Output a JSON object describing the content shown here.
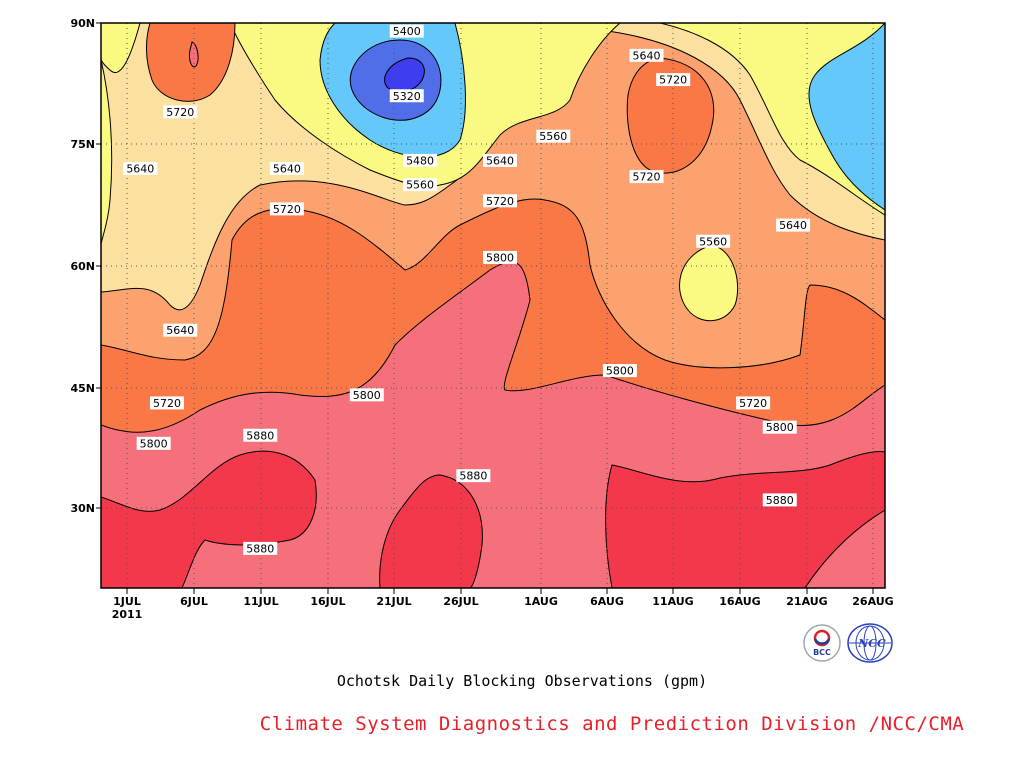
{
  "chart_data": {
    "type": "heatmap",
    "title": "Ochotsk Daily Blocking Observations (gpm)",
    "x_ticks": [
      "1JUL",
      "6JUL",
      "11JUL",
      "16JUL",
      "21JUL",
      "26JUL",
      "1AUG",
      "6AUG",
      "11AUG",
      "16AUG",
      "21AUG",
      "26AUG"
    ],
    "x_year": "2011",
    "y_ticks": [
      "30N",
      "45N",
      "60N",
      "75N",
      "90N"
    ],
    "y_range": [
      "20N",
      "90N"
    ],
    "contour_levels": [
      5320,
      5400,
      5480,
      5560,
      5640,
      5720,
      5800,
      5880
    ],
    "band_colors": {
      "lt5320": "#3e3ef0",
      "5320_5400": "#4f6ee8",
      "5400_5480": "#64c8fa",
      "5480_5560": "#fafa82",
      "5560_5640": "#fce0a0",
      "5640_5720": "#fca26e",
      "5720_5800": "#fa7846",
      "5800_5880": "#f5707a",
      "gt5880": "#f2384a"
    },
    "contour_labels": [
      {
        "text": "5400",
        "date": "22JUL",
        "lat": "89N"
      },
      {
        "text": "5320",
        "date": "22JUL",
        "lat": "81N"
      },
      {
        "text": "5480",
        "date": "23JUL",
        "lat": "73N"
      },
      {
        "text": "5560",
        "date": "23JUL",
        "lat": "70N"
      },
      {
        "text": "5640",
        "date": "29JUL",
        "lat": "73N"
      },
      {
        "text": "5560",
        "date": "2AUG",
        "lat": "76N"
      },
      {
        "text": "5720",
        "date": "29JUL",
        "lat": "68N"
      },
      {
        "text": "5800",
        "date": "29JUL",
        "lat": "61N"
      },
      {
        "text": "5640",
        "date": "9AUG",
        "lat": "86N"
      },
      {
        "text": "5720",
        "date": "11AUG",
        "lat": "83N"
      },
      {
        "text": "5720",
        "date": "9AUG",
        "lat": "71N"
      },
      {
        "text": "5560",
        "date": "14AUG",
        "lat": "63N"
      },
      {
        "text": "5640",
        "date": "20AUG",
        "lat": "65N"
      },
      {
        "text": "5720",
        "date": "5JUL",
        "lat": "79N"
      },
      {
        "text": "5640",
        "date": "2JUL",
        "lat": "72N"
      },
      {
        "text": "5640",
        "date": "13JUL",
        "lat": "72N"
      },
      {
        "text": "5720",
        "date": "13JUL",
        "lat": "67N"
      },
      {
        "text": "5640",
        "date": "5JUL",
        "lat": "52N"
      },
      {
        "text": "5720",
        "date": "4JUL",
        "lat": "43N"
      },
      {
        "text": "5800",
        "date": "3JUL",
        "lat": "38N"
      },
      {
        "text": "5880",
        "date": "11JUL",
        "lat": "39N"
      },
      {
        "text": "5880",
        "date": "11JUL",
        "lat": "25N"
      },
      {
        "text": "5800",
        "date": "19JUL",
        "lat": "44N"
      },
      {
        "text": "5880",
        "date": "27JUL",
        "lat": "34N"
      },
      {
        "text": "5800",
        "date": "7AUG",
        "lat": "47N"
      },
      {
        "text": "5720",
        "date": "17AUG",
        "lat": "43N"
      },
      {
        "text": "5800",
        "date": "19AUG",
        "lat": "40N"
      },
      {
        "text": "5880",
        "date": "19AUG",
        "lat": "31N"
      }
    ],
    "grid": true,
    "grid_style": "dotted"
  },
  "caption_title": "Ochotsk Daily Blocking Observations (gpm)",
  "caption_credit": "Climate System Diagnostics and Prediction Division /NCC/CMA",
  "logos": [
    {
      "icon": "bcc-logo-icon",
      "text": "BCC"
    },
    {
      "icon": "ncc-logo-icon",
      "text": "NCC"
    }
  ]
}
